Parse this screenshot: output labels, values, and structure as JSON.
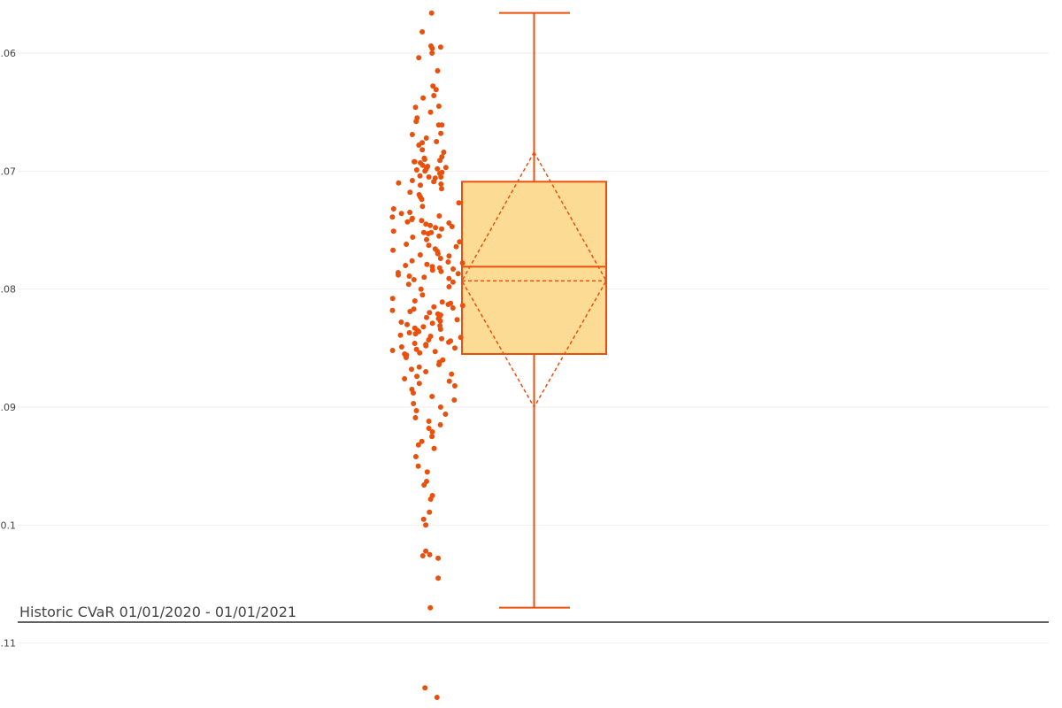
{
  "chart_data": {
    "type": "box",
    "series_label": "Historic CVaR 01/01/2020 - 01/01/2021",
    "y_tick_labels": [
      ".06",
      ".07",
      ".08",
      ".09",
      "0.1",
      ".11"
    ],
    "y_tick_values": [
      -0.06,
      -0.07,
      -0.08,
      -0.09,
      -0.1,
      -0.11
    ],
    "ylim": [
      -0.1155,
      -0.0555
    ],
    "grid": true,
    "box": {
      "upperfence": -0.0566,
      "q3": -0.0709,
      "median": -0.0781,
      "q1": -0.0855,
      "lowerfence": -0.107,
      "mean": -0.0793,
      "mean_plus_sd": -0.0684,
      "mean_minus_sd": -0.09
    },
    "points": [
      -0.0566,
      -0.0582,
      -0.0594,
      -0.0595,
      -0.0596,
      -0.06,
      -0.0604,
      -0.0615,
      -0.0628,
      -0.0631,
      -0.0636,
      -0.0638,
      -0.0645,
      -0.0646,
      -0.065,
      -0.0655,
      -0.0658,
      -0.0661,
      -0.0661,
      -0.0668,
      -0.0669,
      -0.0672,
      -0.0675,
      -0.0676,
      -0.0678,
      -0.0682,
      -0.0684,
      -0.0688,
      -0.0689,
      -0.069,
      -0.0691,
      -0.0692,
      -0.0692,
      -0.0693,
      -0.0695,
      -0.0696,
      -0.0697,
      -0.0698,
      -0.0698,
      -0.0699,
      -0.07,
      -0.0701,
      -0.0702,
      -0.0704,
      -0.0705,
      -0.0705,
      -0.0706,
      -0.0708,
      -0.0709,
      -0.071,
      -0.0711,
      -0.0712,
      -0.0715,
      -0.0718,
      -0.072,
      -0.0722,
      -0.0724,
      -0.0727,
      -0.073,
      -0.0732,
      -0.0735,
      -0.0736,
      -0.0738,
      -0.0739,
      -0.074,
      -0.0741,
      -0.0742,
      -0.0743,
      -0.0744,
      -0.0745,
      -0.0746,
      -0.0747,
      -0.0748,
      -0.0749,
      -0.0751,
      -0.0752,
      -0.0752,
      -0.0753,
      -0.0755,
      -0.0756,
      -0.0758,
      -0.076,
      -0.0762,
      -0.0763,
      -0.0764,
      -0.0766,
      -0.0767,
      -0.0768,
      -0.077,
      -0.0771,
      -0.0772,
      -0.0774,
      -0.0776,
      -0.0777,
      -0.0778,
      -0.0779,
      -0.078,
      -0.0781,
      -0.0782,
      -0.0783,
      -0.0784,
      -0.0785,
      -0.0786,
      -0.0787,
      -0.0788,
      -0.0789,
      -0.079,
      -0.0791,
      -0.0792,
      -0.0794,
      -0.0796,
      -0.0798,
      -0.08,
      -0.0805,
      -0.0808,
      -0.081,
      -0.0811,
      -0.0812,
      -0.0813,
      -0.0814,
      -0.0815,
      -0.0816,
      -0.0817,
      -0.0818,
      -0.0819,
      -0.082,
      -0.0821,
      -0.0822,
      -0.0823,
      -0.0824,
      -0.0825,
      -0.0826,
      -0.0827,
      -0.0828,
      -0.0829,
      -0.083,
      -0.0831,
      -0.0832,
      -0.0833,
      -0.0834,
      -0.0835,
      -0.0836,
      -0.0837,
      -0.0838,
      -0.0839,
      -0.084,
      -0.0841,
      -0.0842,
      -0.0843,
      -0.0844,
      -0.0845,
      -0.0846,
      -0.0847,
      -0.0848,
      -0.0849,
      -0.085,
      -0.0851,
      -0.0852,
      -0.0853,
      -0.0854,
      -0.0855,
      -0.0856,
      -0.0857,
      -0.0858,
      -0.086,
      -0.0862,
      -0.0864,
      -0.0866,
      -0.0868,
      -0.087,
      -0.0872,
      -0.0874,
      -0.0876,
      -0.0878,
      -0.088,
      -0.0882,
      -0.0885,
      -0.0888,
      -0.0891,
      -0.0894,
      -0.0897,
      -0.09,
      -0.0903,
      -0.0906,
      -0.0909,
      -0.0912,
      -0.0915,
      -0.0918,
      -0.0921,
      -0.0925,
      -0.0929,
      -0.0932,
      -0.0935,
      -0.0942,
      -0.095,
      -0.0955,
      -0.0963,
      -0.0966,
      -0.0975,
      -0.0978,
      -0.0989,
      -0.0995,
      -0.1,
      -0.1022,
      -0.1025,
      -0.1026,
      -0.1028,
      -0.1045,
      -0.107,
      -0.1138,
      -0.1146
    ],
    "colors": {
      "marker": "#e8500c",
      "box_fill": "#fcdb94",
      "box_line": "#e8500c",
      "grid": "#eeeeee",
      "axis_line": "#000000",
      "label_text": "#444444"
    }
  }
}
